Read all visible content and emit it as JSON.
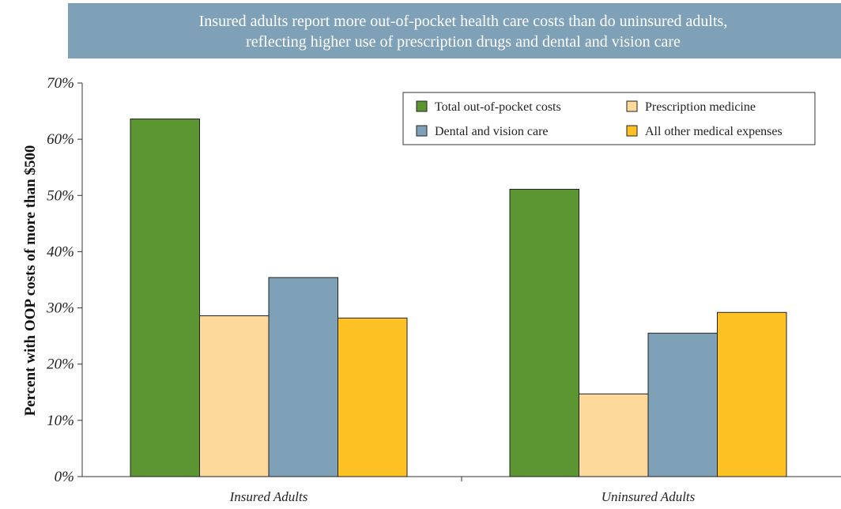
{
  "chart_data": {
    "type": "bar",
    "title_lines": [
      "Insured adults report more out-of-pocket health care costs than do uninsured adults,",
      "reflecting higher use of prescription drugs and dental and vision care"
    ],
    "ylabel": "Percent with OOP costs of more than $500",
    "xlabel": "",
    "ylim": [
      0,
      70
    ],
    "y_ticks": [
      0,
      10,
      20,
      30,
      40,
      50,
      60,
      70
    ],
    "y_tick_labels": [
      "0%",
      "10%",
      "20%",
      "30%",
      "40%",
      "50%",
      "60%",
      "70%"
    ],
    "categories": [
      "Insured Adults",
      "Uninsured Adults"
    ],
    "series": [
      {
        "name": "Total out-of-pocket costs",
        "color": "#5b9632",
        "values": [
          63.6,
          51.1
        ]
      },
      {
        "name": "Prescription medicine",
        "color": "#fdd99b",
        "values": [
          28.6,
          14.7
        ]
      },
      {
        "name": "Dental and vision care",
        "color": "#7fa1b8",
        "values": [
          35.4,
          25.5
        ]
      },
      {
        "name": "All other medical expenses",
        "color": "#fec124",
        "values": [
          28.2,
          29.2
        ]
      }
    ],
    "legend_position": "top-right",
    "grid": false,
    "title_background": "#7fa1b8"
  }
}
